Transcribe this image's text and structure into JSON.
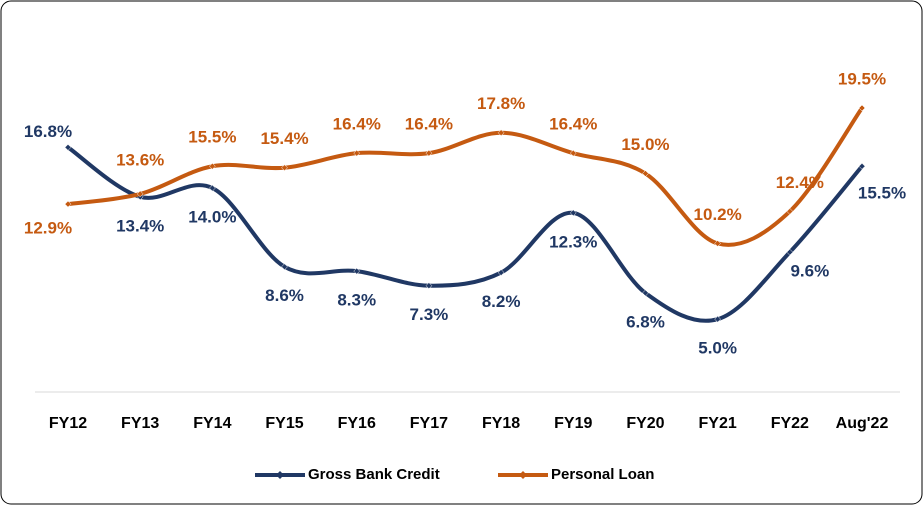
{
  "chart_data": {
    "type": "line",
    "categories": [
      "FY12",
      "FY13",
      "FY14",
      "FY15",
      "FY16",
      "FY17",
      "FY18",
      "FY19",
      "FY20",
      "FY21",
      "FY22",
      "Aug'22"
    ],
    "series": [
      {
        "name": "Gross Bank Credit",
        "color": "#203864",
        "values": [
          16.8,
          13.4,
          14.0,
          8.6,
          8.3,
          7.3,
          8.2,
          12.3,
          6.8,
          5.0,
          9.6,
          15.5
        ],
        "value_labels": [
          "16.8%",
          "13.4%",
          "14.0%",
          "8.6%",
          "8.3%",
          "7.3%",
          "8.2%",
          "12.3%",
          "6.8%",
          "5.0%",
          "9.6%",
          "15.5%"
        ]
      },
      {
        "name": "Personal Loan",
        "color": "#c55a11",
        "values": [
          12.9,
          13.6,
          15.5,
          15.4,
          16.4,
          16.4,
          17.8,
          16.4,
          15.0,
          10.2,
          12.4,
          19.5
        ],
        "value_labels": [
          "12.9%",
          "13.6%",
          "15.5%",
          "15.4%",
          "16.4%",
          "16.4%",
          "17.8%",
          "16.4%",
          "15.0%",
          "10.2%",
          "12.4%",
          "19.5%"
        ]
      }
    ],
    "legend": "bottom"
  }
}
